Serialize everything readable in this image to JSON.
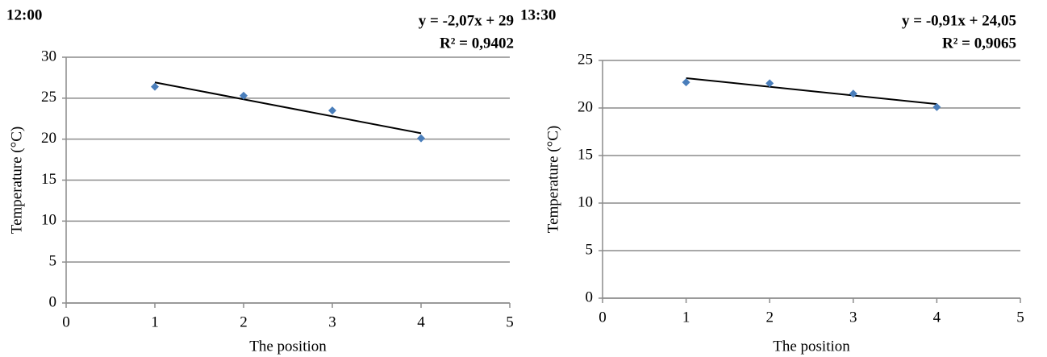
{
  "chart_data": [
    {
      "type": "scatter",
      "title": "12:00",
      "annotations": [
        "y = -2,07x + 29",
        "R² = 0,9402"
      ],
      "x_label": "The position",
      "y_label": "Temperature (°C)",
      "x": [
        1,
        2,
        3,
        4
      ],
      "values": [
        26.4,
        25.3,
        23.5,
        20.1
      ],
      "color": "#4a7ebb",
      "trendline": {
        "slope": -2.07,
        "intercept": 29,
        "color": "#000000"
      },
      "xlim": [
        0,
        5
      ],
      "xticks": [
        0,
        1,
        2,
        3,
        4,
        5
      ],
      "ylim": [
        0,
        30
      ],
      "yticks": [
        0,
        5,
        10,
        15,
        20,
        25,
        30
      ],
      "grid": true
    },
    {
      "type": "scatter",
      "title": "13:30",
      "annotations": [
        "y = -0,91x + 24,05",
        "R² = 0,9065"
      ],
      "x_label": "The position",
      "y_label": "Temperature (°C)",
      "x": [
        1,
        2,
        3,
        4
      ],
      "values": [
        22.7,
        22.6,
        21.5,
        20.1
      ],
      "color": "#4a7ebb",
      "trendline": {
        "slope": -0.91,
        "intercept": 24.05,
        "color": "#000000"
      },
      "xlim": [
        0,
        5
      ],
      "xticks": [
        0,
        1,
        2,
        3,
        4,
        5
      ],
      "ylim": [
        0,
        25
      ],
      "yticks": [
        0,
        5,
        10,
        15,
        20,
        25
      ],
      "grid": true
    }
  ]
}
